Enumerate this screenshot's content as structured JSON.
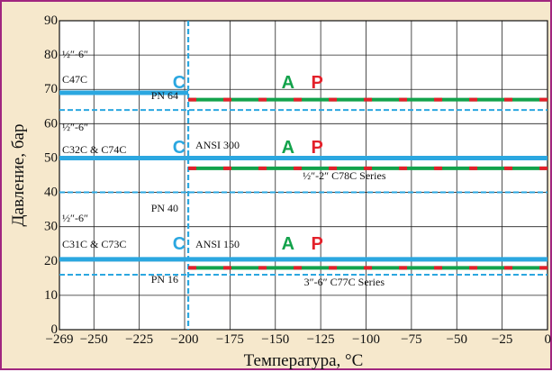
{
  "chart_data": {
    "type": "line",
    "title": "",
    "xlabel": "Температура, °C",
    "ylabel": "Давление, бар",
    "xlim": [
      -269,
      0
    ],
    "ylim": [
      0,
      90
    ],
    "x_ticks": [
      -269,
      -250,
      -225,
      -200,
      -175,
      -150,
      -125,
      -100,
      -75,
      -50,
      -25,
      0
    ],
    "x_tick_labels": [
      "−269",
      "−250",
      "−225",
      "−200",
      "−175",
      "−150",
      "−125",
      "−100",
      "−75",
      "−50",
      "−25",
      "0"
    ],
    "y_ticks": [
      0,
      10,
      20,
      30,
      40,
      50,
      60,
      70,
      80,
      90
    ],
    "y_tick_labels": [
      "0",
      "10",
      "20",
      "30",
      "40",
      "50",
      "60",
      "70",
      "80",
      "90"
    ],
    "grid": true,
    "vline": {
      "x": -198
    },
    "groups": [
      {
        "product_label_1": "½″-6″",
        "product_label_2": "C47C",
        "series": [
          {
            "type": "solid",
            "x": [
              -269,
              -198
            ],
            "y": 69,
            "color": "#2ba7e0"
          },
          {
            "type": "dashed",
            "x": [
              -269,
              0
            ],
            "y": 64,
            "color": "#2ba7e0"
          },
          {
            "type": "dash-green-red",
            "x": [
              -198,
              0
            ],
            "y": 67,
            "colors": [
              "#13a24b",
              "#e3202a"
            ]
          }
        ],
        "labels": {
          "pn": "PN 64",
          "class": "",
          "series_note": ""
        }
      },
      {
        "product_label_1": "½″-6″",
        "product_label_2": "C32C & C74C",
        "series": [
          {
            "type": "solid",
            "x": [
              -269,
              0
            ],
            "y": 50,
            "color": "#2ba7e0"
          },
          {
            "type": "dashed",
            "x": [
              -269,
              0
            ],
            "y": 40,
            "color": "#2ba7e0"
          },
          {
            "type": "dash-green-red",
            "x": [
              -198,
              0
            ],
            "y": 47,
            "colors": [
              "#13a24b",
              "#e3202a"
            ]
          }
        ],
        "labels": {
          "pn": "PN 40",
          "class": "ANSI 300",
          "series_note": "½″-2″ C78C Series"
        }
      },
      {
        "product_label_1": "½″-6″",
        "product_label_2": "C31C & C73C",
        "series": [
          {
            "type": "solid",
            "x": [
              -269,
              0
            ],
            "y": 20.5,
            "color": "#2ba7e0"
          },
          {
            "type": "dashed",
            "x": [
              -269,
              0
            ],
            "y": 16,
            "color": "#2ba7e0"
          },
          {
            "type": "dash-green-red",
            "x": [
              -198,
              0
            ],
            "y": 18,
            "colors": [
              "#13a24b",
              "#e3202a"
            ]
          }
        ],
        "labels": {
          "pn": "PN 16",
          "class": "ANSI 150",
          "series_note": "3″-6″ C77C Series"
        }
      }
    ],
    "markers": [
      {
        "text": "C",
        "color": "#2ba7e0"
      },
      {
        "text": "A",
        "color": "#13a24b"
      },
      {
        "text": "P",
        "color": "#e3202a"
      }
    ]
  }
}
